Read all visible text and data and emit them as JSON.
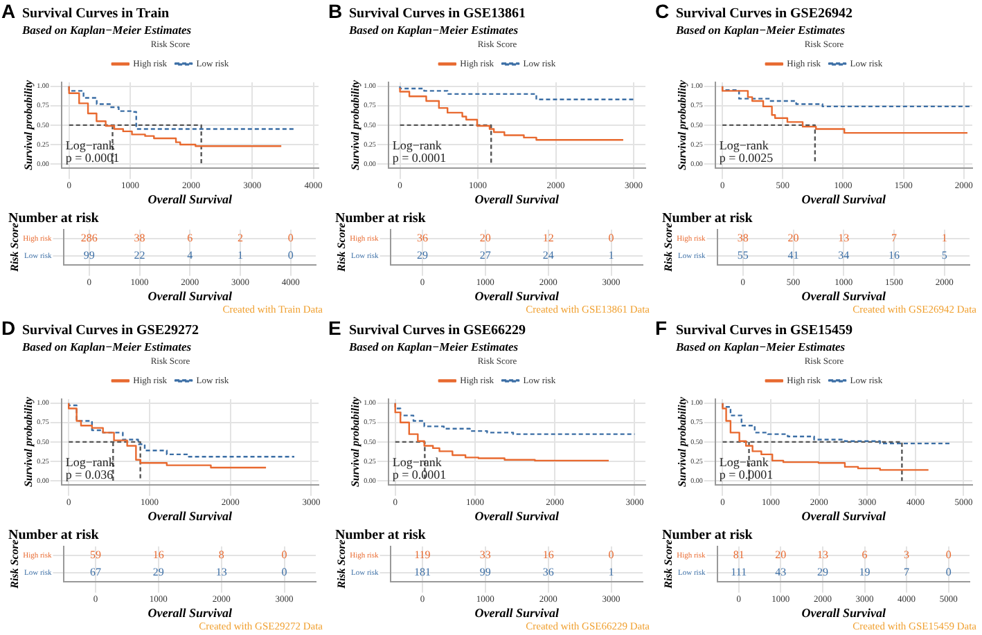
{
  "chart_data": [
    {
      "type": "step",
      "title": "Survival Curves in Train",
      "subtitle": "Based on Kaplan−Meier Estimates",
      "xlabel": "Overall Survival",
      "ylabel": "Survival probability",
      "legend_title": "Risk Score",
      "legend": "top",
      "grid": true,
      "annotations": [
        "A",
        "Log−rank",
        "p = 0.0001"
      ],
      "xlim": [
        -125,
        4085
      ],
      "xticks": [
        0,
        1000,
        2000,
        3000,
        4000
      ],
      "ylim": [
        -0.05,
        1.05
      ],
      "yticks": [
        {
          "value": 0,
          "label": "0.00"
        },
        {
          "value": 0.25,
          "label": "0.25"
        },
        {
          "value": 0.5,
          "label": "0.50"
        },
        {
          "value": 0.75,
          "label": "0.75"
        },
        {
          "value": 1,
          "label": "1.00"
        }
      ],
      "series": [
        {
          "name": "High risk",
          "color": "#e8692f",
          "x": [
            0,
            165,
            310,
            450,
            600,
            740,
            885,
            1030,
            1245,
            1390,
            1750,
            1820,
            2070,
            2180,
            3475
          ],
          "values": [
            1,
            0.91,
            0.78,
            0.65,
            0.55,
            0.49,
            0.45,
            0.42,
            0.38,
            0.36,
            0.33,
            0.28,
            0.25,
            0.23,
            0.23
          ]
        },
        {
          "name": "Low risk",
          "color": "#3b6ea5",
          "line_style": "dashed",
          "x": [
            0,
            237,
            453,
            670,
            813,
            1030,
            1100,
            2165,
            3690
          ],
          "values": [
            1,
            0.94,
            0.85,
            0.77,
            0.73,
            0.68,
            0.67,
            0.45,
            0.45
          ]
        },
        {
          "type": "line",
          "color": "#555555",
          "line_style": "dashed",
          "x": [
            0,
            2165,
            2165
          ],
          "values": [
            0.5,
            0.5,
            0
          ]
        },
        {
          "type": "line",
          "color": "#555555",
          "line_style": "dashed",
          "x": [
            712,
            712
          ],
          "values": [
            0.5,
            0
          ]
        }
      ]
    },
    {
      "type": "heatmap",
      "title": "Number at risk",
      "xlabel": "Overall Survival",
      "ylabel": "Risk Score",
      "grid": true,
      "data_labels": true,
      "annotations": [
        "Created with Train Data"
      ],
      "categories": [
        "0",
        "1000",
        "2000",
        "3000",
        "4000"
      ],
      "y_categories": [
        "High risk",
        "Low risk"
      ],
      "colors": [
        "#e8692f",
        "#3b6ea5"
      ],
      "cells": [
        [
          286,
          38,
          6,
          2,
          0
        ],
        [
          99,
          22,
          4,
          1,
          0
        ]
      ]
    },
    {
      "type": "step",
      "title": "Survival Curves in GSE13861",
      "subtitle": "Based on Kaplan−Meier Estimates",
      "xlabel": "Overall Survival",
      "ylabel": "Survival probability",
      "legend_title": "Risk Score",
      "legend": "top",
      "grid": true,
      "annotations": [
        "B",
        "Log−rank",
        "p = 0.0001"
      ],
      "xlim": [
        -150,
        3150
      ],
      "xticks": [
        0,
        1000,
        2000,
        3000
      ],
      "ylim": [
        -0.05,
        1.05
      ],
      "yticks": [
        {
          "value": 0,
          "label": "0.00"
        },
        {
          "value": 0.25,
          "label": "0.25"
        },
        {
          "value": 0.5,
          "label": "0.50"
        },
        {
          "value": 0.75,
          "label": "0.75"
        },
        {
          "value": 1,
          "label": "1.00"
        }
      ],
      "series": [
        {
          "name": "High risk",
          "color": "#e8692f",
          "x": [
            0,
            120,
            337,
            500,
            610,
            800,
            850,
            990,
            1150,
            1205,
            1340,
            1590,
            1750,
            2185,
            2865
          ],
          "values": [
            0.98,
            0.93,
            0.87,
            0.81,
            0.72,
            0.66,
            0.61,
            0.57,
            0.49,
            0.45,
            0.41,
            0.37,
            0.34,
            0.31,
            0.31
          ]
        },
        {
          "name": "Low risk",
          "color": "#3b6ea5",
          "line_style": "dashed",
          "x": [
            0,
            310,
            610,
            1750,
            1915,
            3025
          ],
          "values": [
            1,
            0.97,
            0.94,
            0.9,
            0.83,
            0.83
          ]
        },
        {
          "type": "line",
          "color": "#555555",
          "line_style": "dashed",
          "x": [
            0,
            1170,
            1170
          ],
          "values": [
            0.5,
            0.5,
            0
          ]
        }
      ]
    },
    {
      "type": "heatmap",
      "title": "Number at risk",
      "xlabel": "Overall Survival",
      "ylabel": "Risk Score",
      "grid": true,
      "data_labels": true,
      "annotations": [
        "Created with GSE13861 Data"
      ],
      "categories": [
        "0",
        "1000",
        "2000",
        "3000"
      ],
      "y_categories": [
        "High risk",
        "Low risk"
      ],
      "colors": [
        "#e8692f",
        "#3b6ea5"
      ],
      "cells": [
        [
          36,
          20,
          12,
          0
        ],
        [
          29,
          27,
          24,
          1
        ]
      ]
    },
    {
      "type": "step",
      "title": "Survival Curves in GSE26942",
      "subtitle": "Based on Kaplan−Meier Estimates",
      "xlabel": "Overall Survival",
      "ylabel": "Survival probability",
      "legend_title": "Risk Score",
      "legend": "top",
      "grid": true,
      "annotations": [
        "C",
        "Log−rank",
        "p = 0.0025"
      ],
      "xlim": [
        -60,
        2070
      ],
      "xticks": [
        0,
        500,
        1000,
        1500,
        2000
      ],
      "ylim": [
        -0.05,
        1.05
      ],
      "yticks": [
        {
          "value": 0,
          "label": "0.00"
        },
        {
          "value": 0.25,
          "label": "0.25"
        },
        {
          "value": 0.5,
          "label": "0.50"
        },
        {
          "value": 0.75,
          "label": "0.75"
        },
        {
          "value": 1,
          "label": "1.00"
        }
      ],
      "series": [
        {
          "name": "High risk",
          "color": "#e8692f",
          "x": [
            0,
            211,
            247,
            338,
            410,
            436,
            538,
            665,
            775,
            1010,
            1175,
            2030
          ],
          "values": [
            1,
            0.94,
            0.86,
            0.81,
            0.74,
            0.63,
            0.59,
            0.54,
            0.48,
            0.45,
            0.4,
            0.4
          ]
        },
        {
          "name": "Low risk",
          "color": "#3b6ea5",
          "line_style": "dashed",
          "x": [
            0,
            138,
            393,
            611,
            829,
            1047,
            2050
          ],
          "values": [
            1,
            0.95,
            0.84,
            0.81,
            0.77,
            0.74,
            0.74
          ]
        },
        {
          "type": "line",
          "color": "#555555",
          "line_style": "dashed",
          "x": [
            0,
            767,
            767
          ],
          "values": [
            0.5,
            0.5,
            0
          ]
        }
      ]
    },
    {
      "type": "heatmap",
      "title": "Number at risk",
      "xlabel": "Overall Survival",
      "ylabel": "Risk Score",
      "grid": true,
      "data_labels": true,
      "annotations": [
        "Created with GSE26942 Data"
      ],
      "categories": [
        "0",
        "500",
        "1000",
        "1500",
        "2000"
      ],
      "y_categories": [
        "High risk",
        "Low risk"
      ],
      "colors": [
        "#e8692f",
        "#3b6ea5"
      ],
      "cells": [
        [
          38,
          20,
          13,
          7,
          1
        ],
        [
          55,
          41,
          34,
          16,
          5
        ]
      ]
    },
    {
      "type": "step",
      "title": "Survival Curves in GSE29272",
      "subtitle": "Based on Kaplan−Meier Estimates",
      "xlabel": "Overall Survival",
      "ylabel": "Survival probability",
      "legend_title": "Risk Score",
      "legend": "top",
      "grid": true,
      "annotations": [
        "D",
        "Log−rank",
        "p = 0.036"
      ],
      "xlim": [
        -90,
        3090
      ],
      "xticks": [
        0,
        1000,
        2000,
        3000
      ],
      "ylim": [
        -0.05,
        1.05
      ],
      "yticks": [
        {
          "value": 0,
          "label": "0.00"
        },
        {
          "value": 0.25,
          "label": "0.25"
        },
        {
          "value": 0.5,
          "label": "0.50"
        },
        {
          "value": 0.75,
          "label": "0.75"
        },
        {
          "value": 1,
          "label": "1.00"
        }
      ],
      "series": [
        {
          "name": "High risk",
          "color": "#e8692f",
          "x": [
            0,
            98,
            152,
            288,
            424,
            560,
            723,
            832,
            887,
            1213,
            1758,
            2030,
            2440
          ],
          "values": [
            1,
            0.93,
            0.77,
            0.71,
            0.68,
            0.62,
            0.52,
            0.45,
            0.27,
            0.23,
            0.2,
            0.17,
            0.17
          ]
        },
        {
          "name": "Low risk",
          "color": "#3b6ea5",
          "line_style": "dashed",
          "x": [
            0,
            98,
            288,
            424,
            669,
            859,
            940,
            1213,
            1485,
            1650,
            2790
          ],
          "values": [
            1,
            0.97,
            0.77,
            0.65,
            0.62,
            0.53,
            0.47,
            0.39,
            0.34,
            0.31,
            0.31
          ]
        },
        {
          "type": "line",
          "color": "#555555",
          "line_style": "dashed",
          "x": [
            0,
            886,
            886
          ],
          "values": [
            0.5,
            0.5,
            0
          ]
        },
        {
          "type": "line",
          "color": "#555555",
          "line_style": "dashed",
          "x": [
            549,
            549
          ],
          "values": [
            0.5,
            0
          ]
        }
      ]
    },
    {
      "type": "heatmap",
      "title": "Number at risk",
      "xlabel": "Overall Survival",
      "ylabel": "Risk Score",
      "grid": true,
      "data_labels": true,
      "annotations": [
        "Created with GSE29272 Data"
      ],
      "categories": [
        "0",
        "1000",
        "2000",
        "3000"
      ],
      "y_categories": [
        "High risk",
        "Low risk"
      ],
      "colors": [
        "#e8692f",
        "#3b6ea5"
      ],
      "cells": [
        [
          59,
          16,
          8,
          0
        ],
        [
          67,
          29,
          13,
          0
        ]
      ]
    },
    {
      "type": "step",
      "title": "Survival Curves in GSE66229",
      "subtitle": "Based on Kaplan−Meier Estimates",
      "xlabel": "Overall Survival",
      "ylabel": "Survival probability",
      "legend_title": "Risk Score",
      "legend": "top",
      "grid": true,
      "annotations": [
        "E",
        "Log−rank",
        "p = 0.0001"
      ],
      "xlim": [
        -87,
        3135
      ],
      "xticks": [
        0,
        1000,
        2000,
        3000
      ],
      "ylim": [
        -0.05,
        1.05
      ],
      "yticks": [
        {
          "value": 0,
          "label": "0.00"
        },
        {
          "value": 0.25,
          "label": "0.25"
        },
        {
          "value": 0.5,
          "label": "0.50"
        },
        {
          "value": 0.75,
          "label": "0.75"
        },
        {
          "value": 1,
          "label": "1.00"
        }
      ],
      "series": [
        {
          "name": "High risk",
          "color": "#e8692f",
          "x": [
            0,
            65,
            174,
            283,
            364,
            473,
            554,
            717,
            880,
            1043,
            1370,
            1750,
            2675
          ],
          "values": [
            1,
            0.88,
            0.75,
            0.6,
            0.51,
            0.45,
            0.42,
            0.38,
            0.33,
            0.3,
            0.29,
            0.27,
            0.26
          ]
        },
        {
          "name": "Low risk",
          "color": "#3b6ea5",
          "line_style": "dashed",
          "x": [
            0,
            65,
            228,
            364,
            609,
            935,
            1152,
            1478,
            1750,
            3000
          ],
          "values": [
            1,
            0.93,
            0.84,
            0.77,
            0.7,
            0.67,
            0.64,
            0.62,
            0.6,
            0.6
          ]
        },
        {
          "type": "line",
          "color": "#555555",
          "line_style": "dashed",
          "x": [
            0,
            370,
            370
          ],
          "values": [
            0.5,
            0.5,
            0
          ]
        }
      ]
    },
    {
      "type": "heatmap",
      "title": "Number at risk",
      "xlabel": "Overall Survival",
      "ylabel": "Risk Score",
      "grid": true,
      "data_labels": true,
      "annotations": [
        "Created with GSE66229 Data"
      ],
      "categories": [
        "0",
        "1000",
        "2000",
        "3000"
      ],
      "y_categories": [
        "High risk",
        "Low risk"
      ],
      "colors": [
        "#e8692f",
        "#3b6ea5"
      ],
      "cells": [
        [
          119,
          33,
          16,
          0
        ],
        [
          181,
          99,
          36,
          1
        ]
      ]
    },
    {
      "type": "step",
      "title": "Survival Curves in GSE15459",
      "subtitle": "Based on Kaplan−Meier Estimates",
      "xlabel": "Overall Survival",
      "ylabel": "Survival probability",
      "legend_title": "Risk Score",
      "legend": "top",
      "grid": true,
      "annotations": [
        "F",
        "Log−rank",
        "p = 0.0001"
      ],
      "xlim": [
        -155,
        5180
      ],
      "xticks": [
        0,
        1000,
        2000,
        3000,
        4000,
        5000
      ],
      "ylim": [
        -0.05,
        1.05
      ],
      "yticks": [
        {
          "value": 0,
          "label": "0.00"
        },
        {
          "value": 0.25,
          "label": "0.25"
        },
        {
          "value": 0.5,
          "label": "0.50"
        },
        {
          "value": 0.75,
          "label": "0.75"
        },
        {
          "value": 1,
          "label": "1.00"
        }
      ],
      "series": [
        {
          "name": "High risk",
          "color": "#e8692f",
          "x": [
            0,
            73,
            164,
            347,
            484,
            620,
            803,
            1031,
            1259,
            1990,
            2536,
            2810,
            3266,
            3449,
            4270
          ],
          "values": [
            1,
            0.93,
            0.77,
            0.62,
            0.51,
            0.45,
            0.38,
            0.34,
            0.26,
            0.24,
            0.23,
            0.18,
            0.16,
            0.14,
            0.14
          ]
        },
        {
          "name": "Low risk",
          "color": "#3b6ea5",
          "line_style": "dashed",
          "x": [
            0,
            164,
            392,
            666,
            940,
            1350,
            1898,
            2536,
            3266,
            3723,
            4726
          ],
          "values": [
            1,
            0.95,
            0.84,
            0.71,
            0.62,
            0.6,
            0.57,
            0.53,
            0.51,
            0.48,
            0.48
          ]
        },
        {
          "type": "line",
          "color": "#555555",
          "line_style": "dashed",
          "x": [
            0,
            3720,
            3720
          ],
          "values": [
            0.5,
            0.5,
            0
          ]
        },
        {
          "type": "line",
          "color": "#555555",
          "line_style": "dashed",
          "x": [
            547,
            547
          ],
          "values": [
            0.5,
            0
          ]
        }
      ]
    },
    {
      "type": "heatmap",
      "title": "Number at risk",
      "xlabel": "Overall Survival",
      "ylabel": "Risk Score",
      "grid": true,
      "data_labels": true,
      "annotations": [
        "Created with GSE15459 Data"
      ],
      "categories": [
        "0",
        "1000",
        "2000",
        "3000",
        "4000",
        "5000"
      ],
      "y_categories": [
        "High risk",
        "Low risk"
      ],
      "colors": [
        "#e8692f",
        "#3b6ea5"
      ],
      "cells": [
        [
          81,
          20,
          13,
          6,
          3,
          0
        ],
        [
          111,
          43,
          29,
          19,
          7,
          0
        ]
      ]
    }
  ]
}
